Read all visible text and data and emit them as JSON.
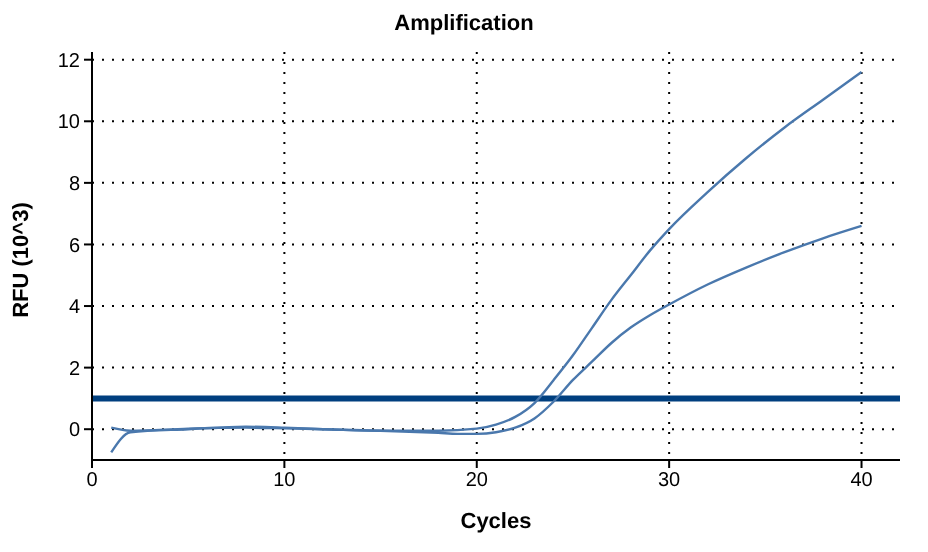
{
  "chart_data": {
    "type": "line",
    "title": "Amplification",
    "xlabel": "Cycles",
    "ylabel": "RFU (10^3)",
    "series": [
      {
        "color": "#4a78ad",
        "x": [
          1,
          2,
          5,
          8,
          10,
          12,
          15,
          18,
          20,
          21,
          22,
          23,
          24,
          25,
          26,
          27,
          28,
          29,
          30,
          32,
          34,
          36,
          38,
          40
        ],
        "values": [
          0.05,
          -0.05,
          0.02,
          0.05,
          0.03,
          0,
          -0.05,
          -0.05,
          0.02,
          0.15,
          0.4,
          0.85,
          1.6,
          2.4,
          3.3,
          4.2,
          5.0,
          5.8,
          6.5,
          7.7,
          8.8,
          9.8,
          10.7,
          11.6
        ]
      },
      {
        "color": "#4a78ad",
        "x": [
          1,
          2,
          5,
          8,
          10,
          12,
          15,
          18,
          19,
          20,
          21,
          22,
          23,
          24,
          25,
          26,
          27,
          28,
          29,
          30,
          32,
          34,
          36,
          38,
          40
        ],
        "values": [
          -0.75,
          -0.1,
          0,
          0.08,
          0.05,
          0,
          -0.05,
          -0.12,
          -0.15,
          -0.15,
          -0.1,
          0.05,
          0.35,
          0.9,
          1.6,
          2.2,
          2.8,
          3.3,
          3.7,
          4.05,
          4.7,
          5.25,
          5.75,
          6.2,
          6.6
        ]
      }
    ],
    "ref_lines": [
      {
        "axis": "y",
        "value": 1,
        "color": "#003f7f"
      }
    ],
    "xlim": [
      0,
      42
    ],
    "xticks": [
      0,
      10,
      20,
      30,
      40
    ],
    "ylim": [
      -1,
      12.25
    ],
    "yticks": [
      0,
      2,
      4,
      6,
      8,
      10,
      12
    ],
    "grid": true,
    "marker": "none",
    "line_style": "solid"
  }
}
